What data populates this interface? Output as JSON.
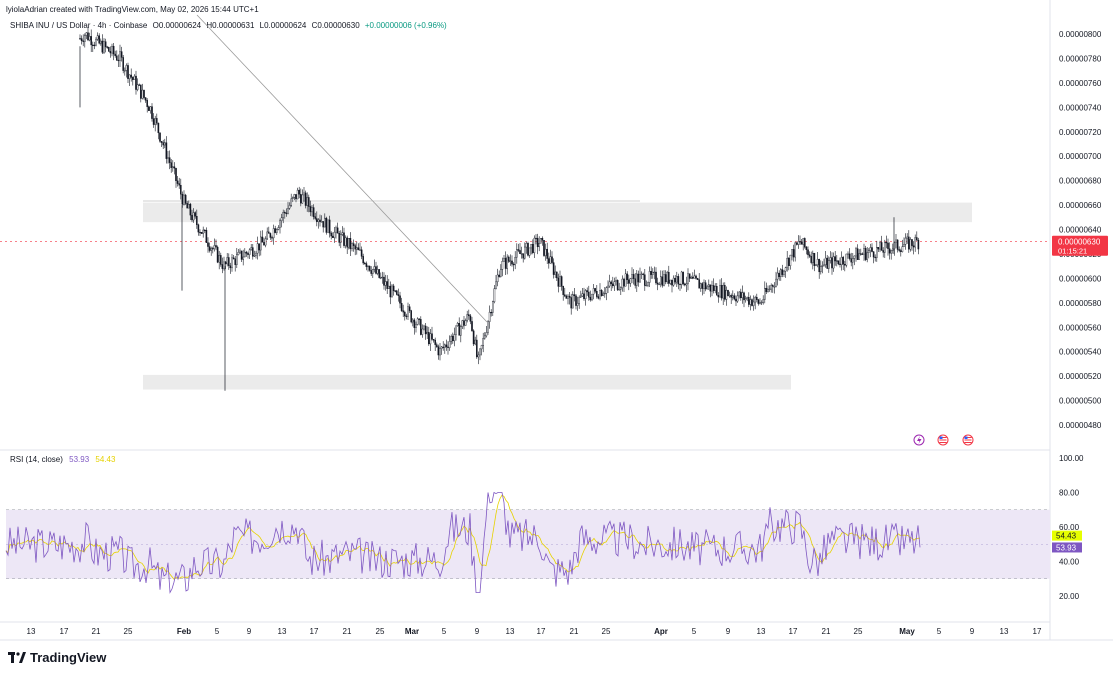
{
  "header": {
    "credit": "lyiolaAdrian created with TradingView.com, May 02, 2026 15:44 UTC+1"
  },
  "legend": {
    "symbol": "SHIBA INU / US Dollar · 4h · Coinbase",
    "open": "O0.00000624",
    "high": "H0.00000631",
    "low": "L0.00000624",
    "close": "C0.00000630",
    "change": "+0.00000006 (+0.96%)"
  },
  "rsi_legend": {
    "label": "RSI (14, close)",
    "rsi_value": "53.93",
    "ma_value": "54.43"
  },
  "price_axis": {
    "ticks": [
      "0.00000800",
      "0.00000780",
      "0.00000760",
      "0.00000740",
      "0.00000720",
      "0.00000700",
      "0.00000680",
      "0.00000660",
      "0.00000640",
      "0.00000620",
      "0.00000600",
      "0.00000580",
      "0.00000560",
      "0.00000540",
      "0.00000520",
      "0.00000500",
      "0.00000480"
    ],
    "current_price": "0.00000630",
    "countdown": "01:15:21"
  },
  "rsi_axis": {
    "ticks": [
      "100.00",
      "80.00",
      "60.00",
      "40.00",
      "20.00"
    ],
    "rsi_badge": "53.93",
    "ma_badge": "54.43"
  },
  "time_axis": {
    "ticks": [
      "13",
      "17",
      "21",
      "25",
      "Feb",
      "5",
      "9",
      "13",
      "17",
      "21",
      "25",
      "Mar",
      "5",
      "9",
      "13",
      "17",
      "21",
      "25",
      "Apr",
      "5",
      "9",
      "13",
      "17",
      "21",
      "25",
      "May",
      "5",
      "9",
      "13",
      "17"
    ]
  },
  "colors": {
    "candle": "#131722",
    "zone": "#ebebeb",
    "price_badge": "#f23645",
    "rsi_line": "#7e57c2",
    "rsi_ma": "#e6d200",
    "rsi_band": "#ede7f6"
  },
  "icons": [
    "lightning-icon",
    "us-flag-icon",
    "us-flag-icon"
  ],
  "brand": {
    "name": "TradingView"
  },
  "chart_data": {
    "type": "candlestick",
    "interval": "4h",
    "price_ylim": [
      4.7e-06,
      8.1e-06
    ],
    "x": [
      "Jan 13",
      "Jan 17",
      "Jan 21",
      "Jan 25",
      "Feb 1",
      "Feb 5",
      "Feb 9",
      "Feb 13",
      "Feb 17",
      "Feb 21",
      "Feb 25",
      "Mar 1",
      "Mar 5",
      "Mar 9",
      "Mar 13",
      "Mar 17",
      "Mar 21",
      "Mar 25",
      "Apr 1",
      "Apr 5",
      "Apr 9",
      "Apr 13",
      "Apr 17",
      "Apr 21",
      "Apr 25",
      "May 1"
    ],
    "close_path": [
      7.6e-06,
      8e-06,
      7.8e-06,
      7.4e-06,
      6.6e-06,
      6.1e-06,
      6.3e-06,
      6.7e-06,
      6.4e-06,
      6.2e-06,
      5.8e-06,
      5.4e-06,
      5.7e-06,
      5.3e-06,
      6.1e-06,
      6.3e-06,
      5.8e-06,
      5.9e-06,
      6e-06,
      6e-06,
      5.9e-06,
      5.8e-06,
      6.3e-06,
      6.1e-06,
      6.2e-06,
      6.3e-06
    ],
    "resistance_zone": [
      6.46e-06,
      6.62e-06
    ],
    "support_zone": [
      5.09e-06,
      5.21e-06
    ],
    "trendline": [
      [
        "Jan 25",
        8.1e-06
      ],
      [
        "Mar 9",
        5.6e-06
      ]
    ],
    "rsi": {
      "length": 14,
      "source": "close",
      "ylim": [
        0,
        100
      ],
      "overbought": 70,
      "oversold": 30,
      "last_rsi": 53.93,
      "last_ma": 54.43
    }
  }
}
